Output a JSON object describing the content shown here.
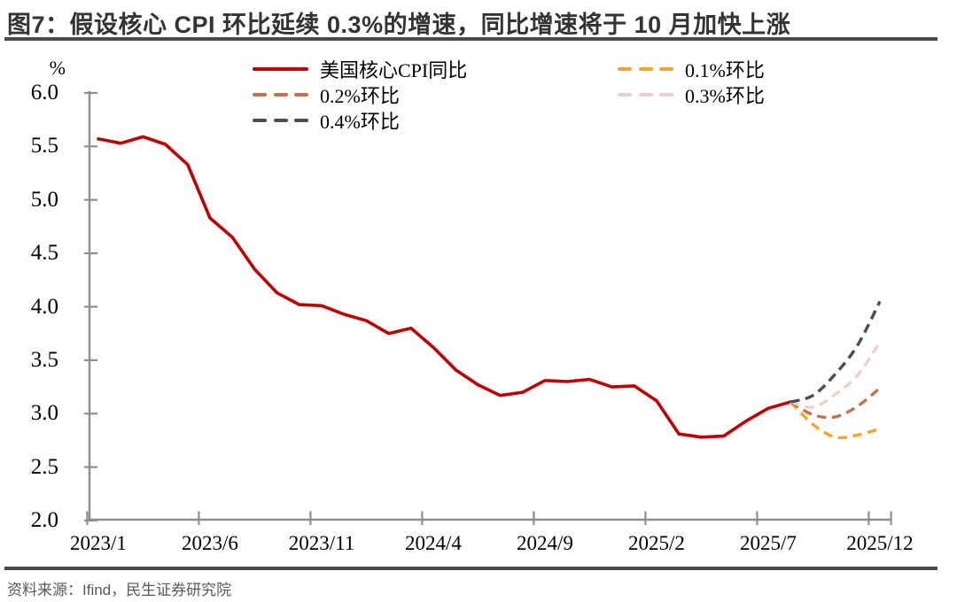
{
  "header": {
    "title": "图7：假设核心 CPI 环比延续 0.3%的增速，同比增速将于 10 月加快上涨"
  },
  "footer": {
    "source": "资料来源：Ifind，民生证券研究院"
  },
  "chart_data": {
    "type": "line",
    "title": "假设核心CPI环比延续0.3%的增速，同比增速将于10月加快上涨",
    "unit_label": "%",
    "ylabel": "%",
    "xlabel": "",
    "ylim": [
      2.0,
      6.0
    ],
    "grid": false,
    "legend_position": "top",
    "x_start": "2023/1",
    "x_end": "2025/12",
    "x_frequency": "monthly",
    "yticks": [
      "6.0",
      "5.5",
      "5.0",
      "4.5",
      "4.0",
      "3.5",
      "3.0",
      "2.5",
      "2.0"
    ],
    "xticks": [
      {
        "label": "2023/1",
        "month": 0
      },
      {
        "label": "2023/6",
        "month": 5
      },
      {
        "label": "2023/11",
        "month": 10
      },
      {
        "label": "2024/4",
        "month": 15
      },
      {
        "label": "2024/9",
        "month": 20
      },
      {
        "label": "2025/2",
        "month": 25
      },
      {
        "label": "2025/7",
        "month": 30
      },
      {
        "label": "2025/12",
        "month": 35
      }
    ],
    "axis_color": "#8f8f8f",
    "series": [
      {
        "name": "美国核心CPI同比",
        "color": "#C00000",
        "style": "solid",
        "start_month": 0,
        "values": [
          5.57,
          5.53,
          5.59,
          5.52,
          5.33,
          4.83,
          4.65,
          4.35,
          4.13,
          4.02,
          4.01,
          3.93,
          3.87,
          3.75,
          3.8,
          3.62,
          3.41,
          3.27,
          3.17,
          3.2,
          3.31,
          3.3,
          3.32,
          3.25,
          3.26,
          3.12,
          2.81,
          2.78,
          2.79,
          2.93,
          3.05,
          3.11
        ]
      },
      {
        "name": "0.1%环比",
        "color": "#FFA226",
        "style": "dashed",
        "start_month": 31,
        "values": [
          3.11,
          2.9,
          2.78,
          2.8,
          2.86
        ]
      },
      {
        "name": "0.2%环比",
        "color": "#C0734D",
        "style": "dashed",
        "start_month": 31,
        "values": [
          3.11,
          2.99,
          2.97,
          3.07,
          3.24
        ]
      },
      {
        "name": "0.3%环比",
        "color": "#EDD0CC",
        "style": "dashed",
        "start_month": 31,
        "values": [
          3.11,
          3.06,
          3.18,
          3.36,
          3.67
        ]
      },
      {
        "name": "0.4%环比",
        "color": "#4D4D4D",
        "style": "dashed",
        "start_month": 31,
        "values": [
          3.11,
          3.17,
          3.37,
          3.64,
          4.05
        ]
      }
    ]
  }
}
